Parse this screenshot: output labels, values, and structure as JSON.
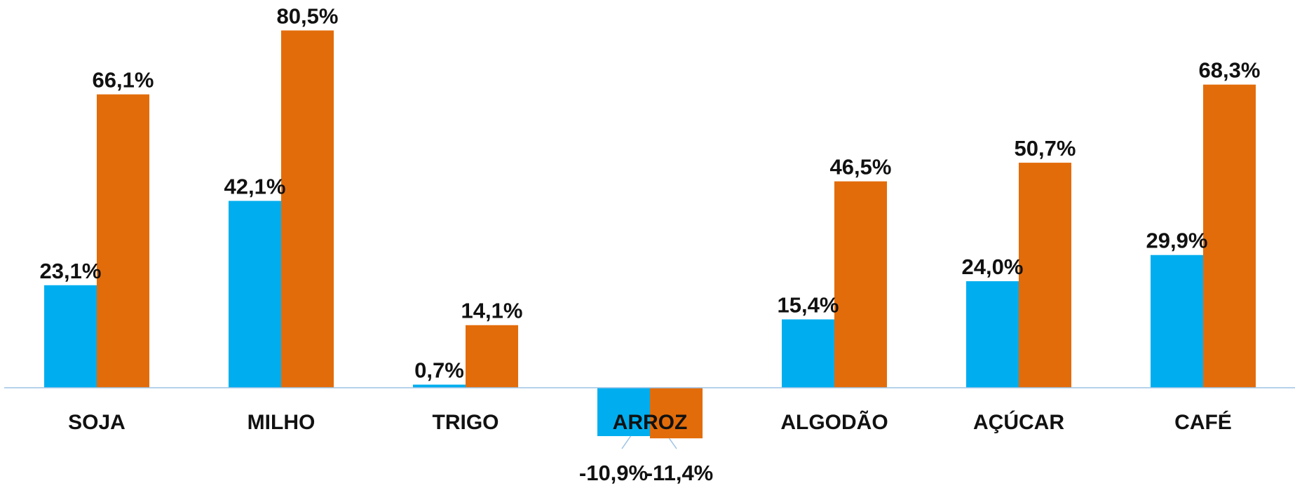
{
  "chart_data": {
    "type": "bar",
    "title": "",
    "xlabel": "",
    "ylabel": "",
    "categories": [
      "SOJA",
      "MILHO",
      "TRIGO",
      "ARROZ",
      "ALGODÃO",
      "AÇÚCAR",
      "CAFÉ"
    ],
    "series": [
      {
        "color": "#00AEEF",
        "values": [
          23.1,
          42.1,
          0.7,
          -10.9,
          15.4,
          24.0,
          29.9
        ],
        "labels": [
          "23,1%",
          "42,1%",
          "0,7%",
          "-10,9%",
          "15,4%",
          "24,0%",
          "29,9%"
        ]
      },
      {
        "color": "#E36C0A",
        "values": [
          66.1,
          80.5,
          14.1,
          -11.4,
          46.5,
          50.7,
          68.3
        ],
        "labels": [
          "66,1%",
          "80,5%",
          "14,1%",
          "-11,4%",
          "46,5%",
          "50,7%",
          "68,3%"
        ]
      }
    ],
    "ylim": [
      -20,
      85
    ],
    "grid": false,
    "legend": "none",
    "axis_color": "#9DC3E6",
    "leader_line_color": "#9DC3E6"
  }
}
